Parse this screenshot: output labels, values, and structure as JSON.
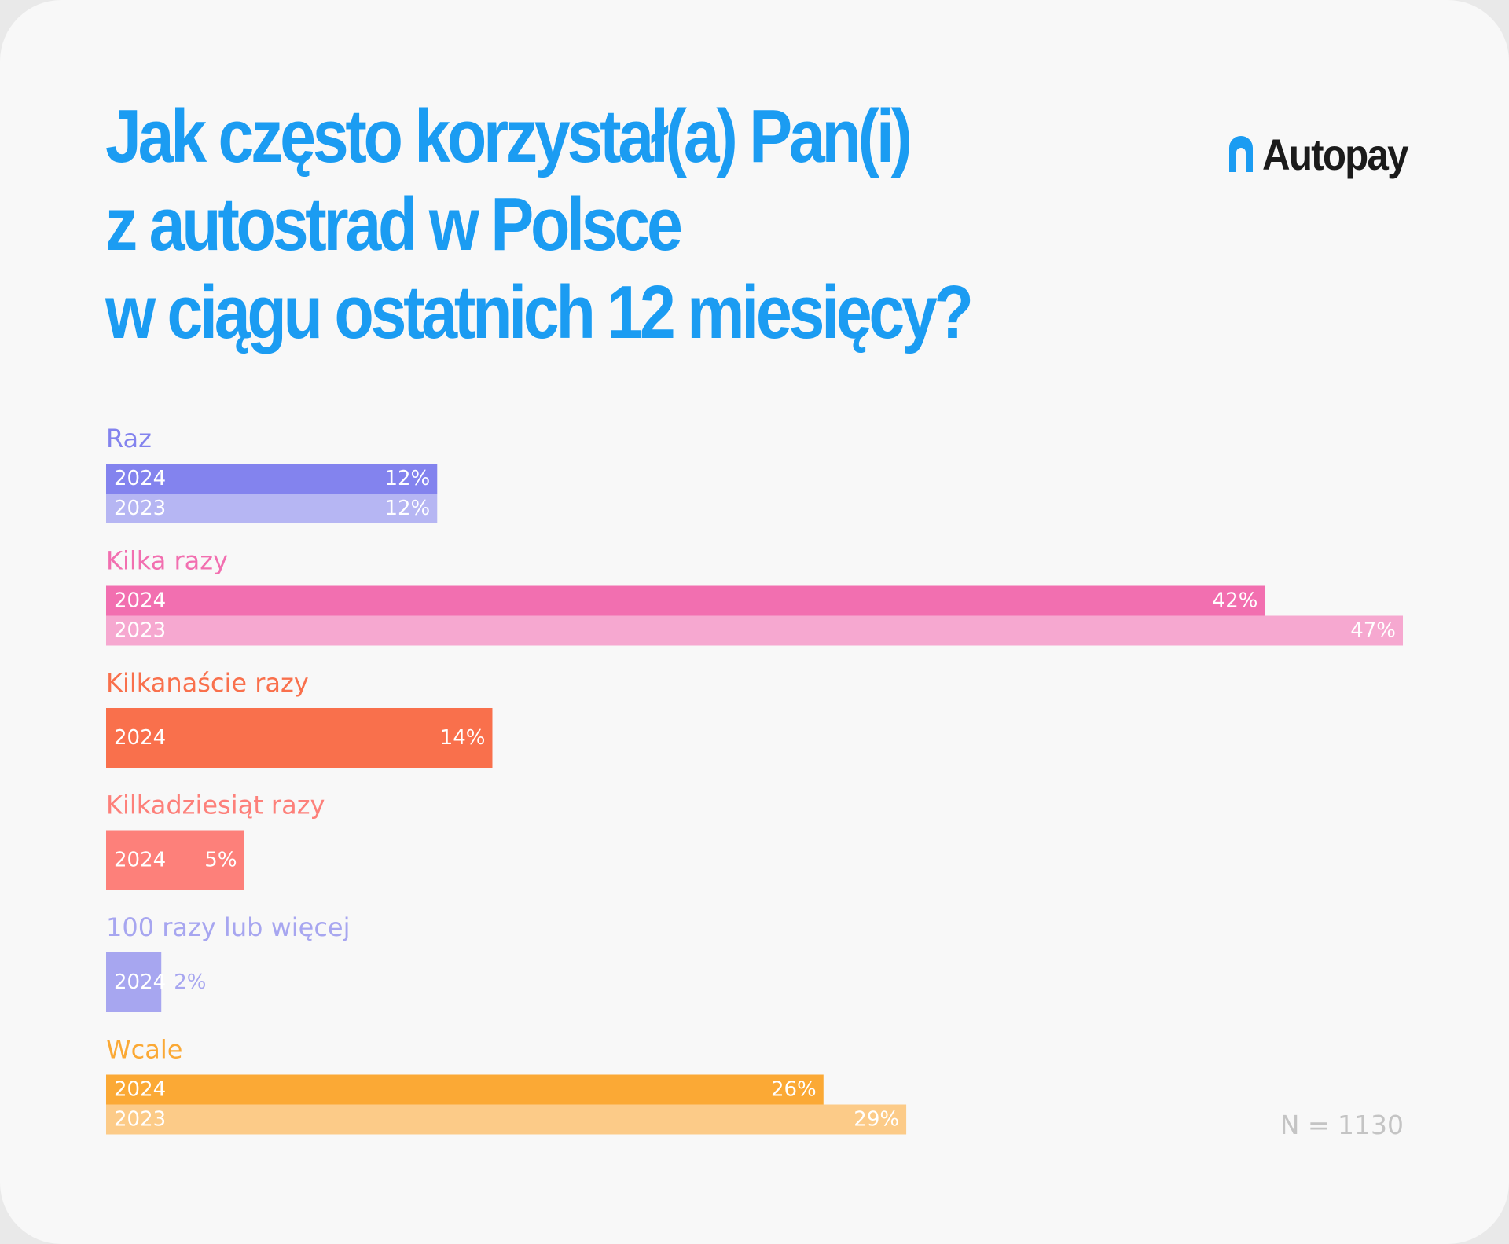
{
  "title_lines": [
    "Jak często korzystał(a) Pan(i)",
    "z autostrad w Polsce",
    "w ciągu ostatnich 12 miesięcy?"
  ],
  "brand": {
    "name": "Autopay",
    "logo_icon": "autopay-arch-icon",
    "icon_color": "#1b9cf2",
    "title_color": "#1b9cf2"
  },
  "sample_size": "N = 1130",
  "chart_data": {
    "type": "bar",
    "orientation": "horizontal",
    "value_unit": "%",
    "xlim": [
      0,
      47
    ],
    "grid": false,
    "groups": [
      {
        "label": "Raz",
        "label_color": "#8383ee",
        "bars": [
          {
            "year": "2024",
            "value": 12,
            "label": "12%",
            "color": "#8383ee"
          },
          {
            "year": "2023",
            "value": 12,
            "label": "12%",
            "color": "#b6b6f3"
          }
        ]
      },
      {
        "label": "Kilka razy",
        "label_color": "#f26fb0",
        "bars": [
          {
            "year": "2024",
            "value": 42,
            "label": "42%",
            "color": "#f26fb0"
          },
          {
            "year": "2023",
            "value": 47,
            "label": "47%",
            "color": "#f6a8d0"
          }
        ]
      },
      {
        "label": "Kilkanaście razy",
        "label_color": "#f9704c",
        "bars": [
          {
            "year": "2024",
            "value": 14,
            "label": "14%",
            "color": "#f9704c"
          }
        ]
      },
      {
        "label": "Kilkadziesiąt razy",
        "label_color": "#fd807a",
        "bars": [
          {
            "year": "2024",
            "value": 5,
            "label": "5%",
            "color": "#fd807a"
          }
        ]
      },
      {
        "label": "100 razy lub więcej",
        "label_color": "#a7a6f0",
        "bars": [
          {
            "year": "2024",
            "value": 2,
            "label": "2%",
            "color": "#a7a6f0",
            "value_label_outside": true
          }
        ]
      },
      {
        "label": "Wcale",
        "label_color": "#fba935",
        "bars": [
          {
            "year": "2024",
            "value": 26,
            "label": "26%",
            "color": "#fba935"
          },
          {
            "year": "2023",
            "value": 29,
            "label": "29%",
            "color": "#fccb88"
          }
        ]
      }
    ]
  }
}
